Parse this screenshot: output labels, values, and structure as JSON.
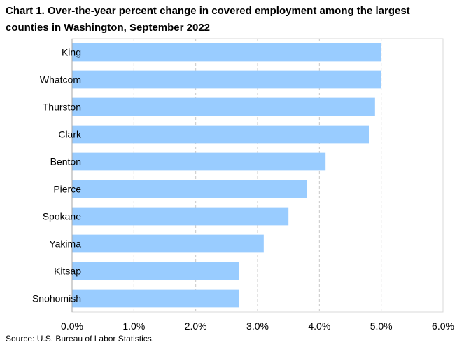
{
  "chart_data": {
    "type": "bar",
    "orientation": "horizontal",
    "title": "Chart 1. Over-the-year percent change in covered employment among the largest counties in Washington, September 2022",
    "categories": [
      "King",
      "Whatcom",
      "Thurston",
      "Clark",
      "Benton",
      "Pierce",
      "Spokane",
      "Yakima",
      "Kitsap",
      "Snohomish"
    ],
    "values": [
      5.0,
      5.0,
      4.9,
      4.8,
      4.1,
      3.8,
      3.5,
      3.1,
      2.7,
      2.7
    ],
    "xlim": [
      0,
      6
    ],
    "x_ticks": [
      "0.0%",
      "1.0%",
      "2.0%",
      "3.0%",
      "4.0%",
      "5.0%",
      "6.0%"
    ],
    "grid": true,
    "bar_color": "#99ccff"
  },
  "source": "Source: U.S. Bureau of Labor Statistics."
}
